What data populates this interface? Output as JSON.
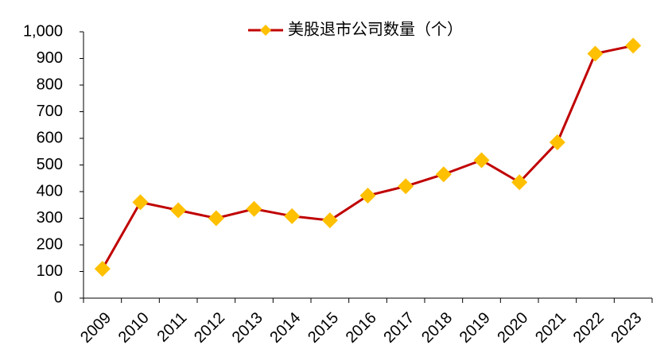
{
  "chart_data": {
    "type": "line",
    "categories": [
      "2009",
      "2010",
      "2011",
      "2012",
      "2013",
      "2014",
      "2015",
      "2016",
      "2017",
      "2018",
      "2019",
      "2020",
      "2021",
      "2022",
      "2023"
    ],
    "series": [
      {
        "name": "美股退市公司数量（个）",
        "color": "#c00000",
        "marker_color": "#ffc000",
        "values": [
          110,
          360,
          330,
          300,
          335,
          308,
          292,
          385,
          420,
          465,
          518,
          435,
          585,
          918,
          948
        ]
      }
    ],
    "ylim": [
      0,
      1000
    ],
    "yticks": [
      0,
      100,
      200,
      300,
      400,
      500,
      600,
      700,
      800,
      900,
      {
        "value": 1000,
        "label": "1,000"
      }
    ],
    "grid": false,
    "legend": "top"
  }
}
